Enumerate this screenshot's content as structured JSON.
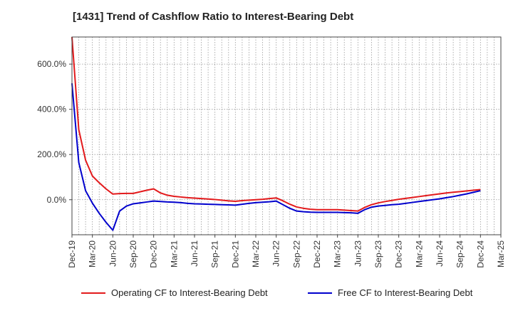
{
  "chart_data": {
    "type": "line",
    "title": "[1431]  Trend of Cashflow Ratio to Interest-Bearing Debt",
    "xlabel": "",
    "ylabel": "",
    "ylim": [
      -155,
      720
    ],
    "y_ticks": [
      0,
      200,
      400,
      600
    ],
    "y_tick_labels": [
      "0.0%",
      "200.0%",
      "400.0%",
      "600.0%"
    ],
    "x_tick_labels": [
      "Dec-19",
      "Mar-20",
      "Jun-20",
      "Sep-20",
      "Dec-20",
      "Mar-21",
      "Jun-21",
      "Sep-21",
      "Dec-21",
      "Mar-22",
      "Jun-22",
      "Sep-22",
      "Dec-22",
      "Mar-23",
      "Jun-23",
      "Sep-23",
      "Dec-23",
      "Mar-24",
      "Jun-24",
      "Sep-24",
      "Dec-24",
      "Mar-25"
    ],
    "x": [
      "Dec-19",
      "Jan-20",
      "Feb-20",
      "Mar-20",
      "Apr-20",
      "May-20",
      "Jun-20",
      "Jul-20",
      "Aug-20",
      "Sep-20",
      "Oct-20",
      "Nov-20",
      "Dec-20",
      "Jan-21",
      "Feb-21",
      "Mar-21",
      "Apr-21",
      "May-21",
      "Jun-21",
      "Jul-21",
      "Aug-21",
      "Sep-21",
      "Oct-21",
      "Nov-21",
      "Dec-21",
      "Jan-22",
      "Feb-22",
      "Mar-22",
      "Apr-22",
      "May-22",
      "Jun-22",
      "Jul-22",
      "Aug-22",
      "Sep-22",
      "Oct-22",
      "Nov-22",
      "Dec-22",
      "Jan-23",
      "Feb-23",
      "Mar-23",
      "Apr-23",
      "May-23",
      "Jun-23",
      "Jul-23",
      "Aug-23",
      "Sep-23",
      "Oct-23",
      "Nov-23",
      "Dec-23",
      "Jan-24",
      "Feb-24",
      "Mar-24",
      "Apr-24",
      "May-24",
      "Jun-24",
      "Jul-24",
      "Aug-24",
      "Sep-24",
      "Oct-24",
      "Nov-24",
      "Dec-24"
    ],
    "grid": true,
    "legend_placement": "bottom",
    "series": [
      {
        "name": "Operating CF to Interest-Bearing Debt",
        "color": "#e31a1c",
        "values": [
          720,
          310,
          175,
          105,
          75,
          48,
          25,
          27,
          28,
          28,
          35,
          42,
          48,
          30,
          20,
          15,
          12,
          9,
          7,
          5,
          3,
          1,
          -2,
          -5,
          -7,
          -4,
          -2,
          0,
          2,
          5,
          8,
          -5,
          -20,
          -32,
          -38,
          -42,
          -44,
          -44,
          -44,
          -44,
          -46,
          -48,
          -50,
          -34,
          -22,
          -14,
          -8,
          -3,
          2,
          6,
          10,
          14,
          18,
          22,
          26,
          30,
          33,
          36,
          39,
          42,
          45
        ]
      },
      {
        "name": "Free CF to Interest-Bearing Debt",
        "color": "#0000cd",
        "values": [
          515,
          165,
          40,
          -15,
          -60,
          -100,
          -135,
          -50,
          -28,
          -18,
          -14,
          -10,
          -6,
          -8,
          -10,
          -11,
          -13,
          -16,
          -18,
          -19,
          -20,
          -21,
          -22,
          -23,
          -24,
          -20,
          -16,
          -13,
          -11,
          -9,
          -6,
          -22,
          -38,
          -50,
          -53,
          -55,
          -56,
          -56,
          -56,
          -56,
          -57,
          -58,
          -60,
          -44,
          -33,
          -28,
          -25,
          -22,
          -20,
          -16,
          -12,
          -8,
          -4,
          0,
          4,
          9,
          14,
          20,
          26,
          33,
          40
        ]
      }
    ]
  }
}
